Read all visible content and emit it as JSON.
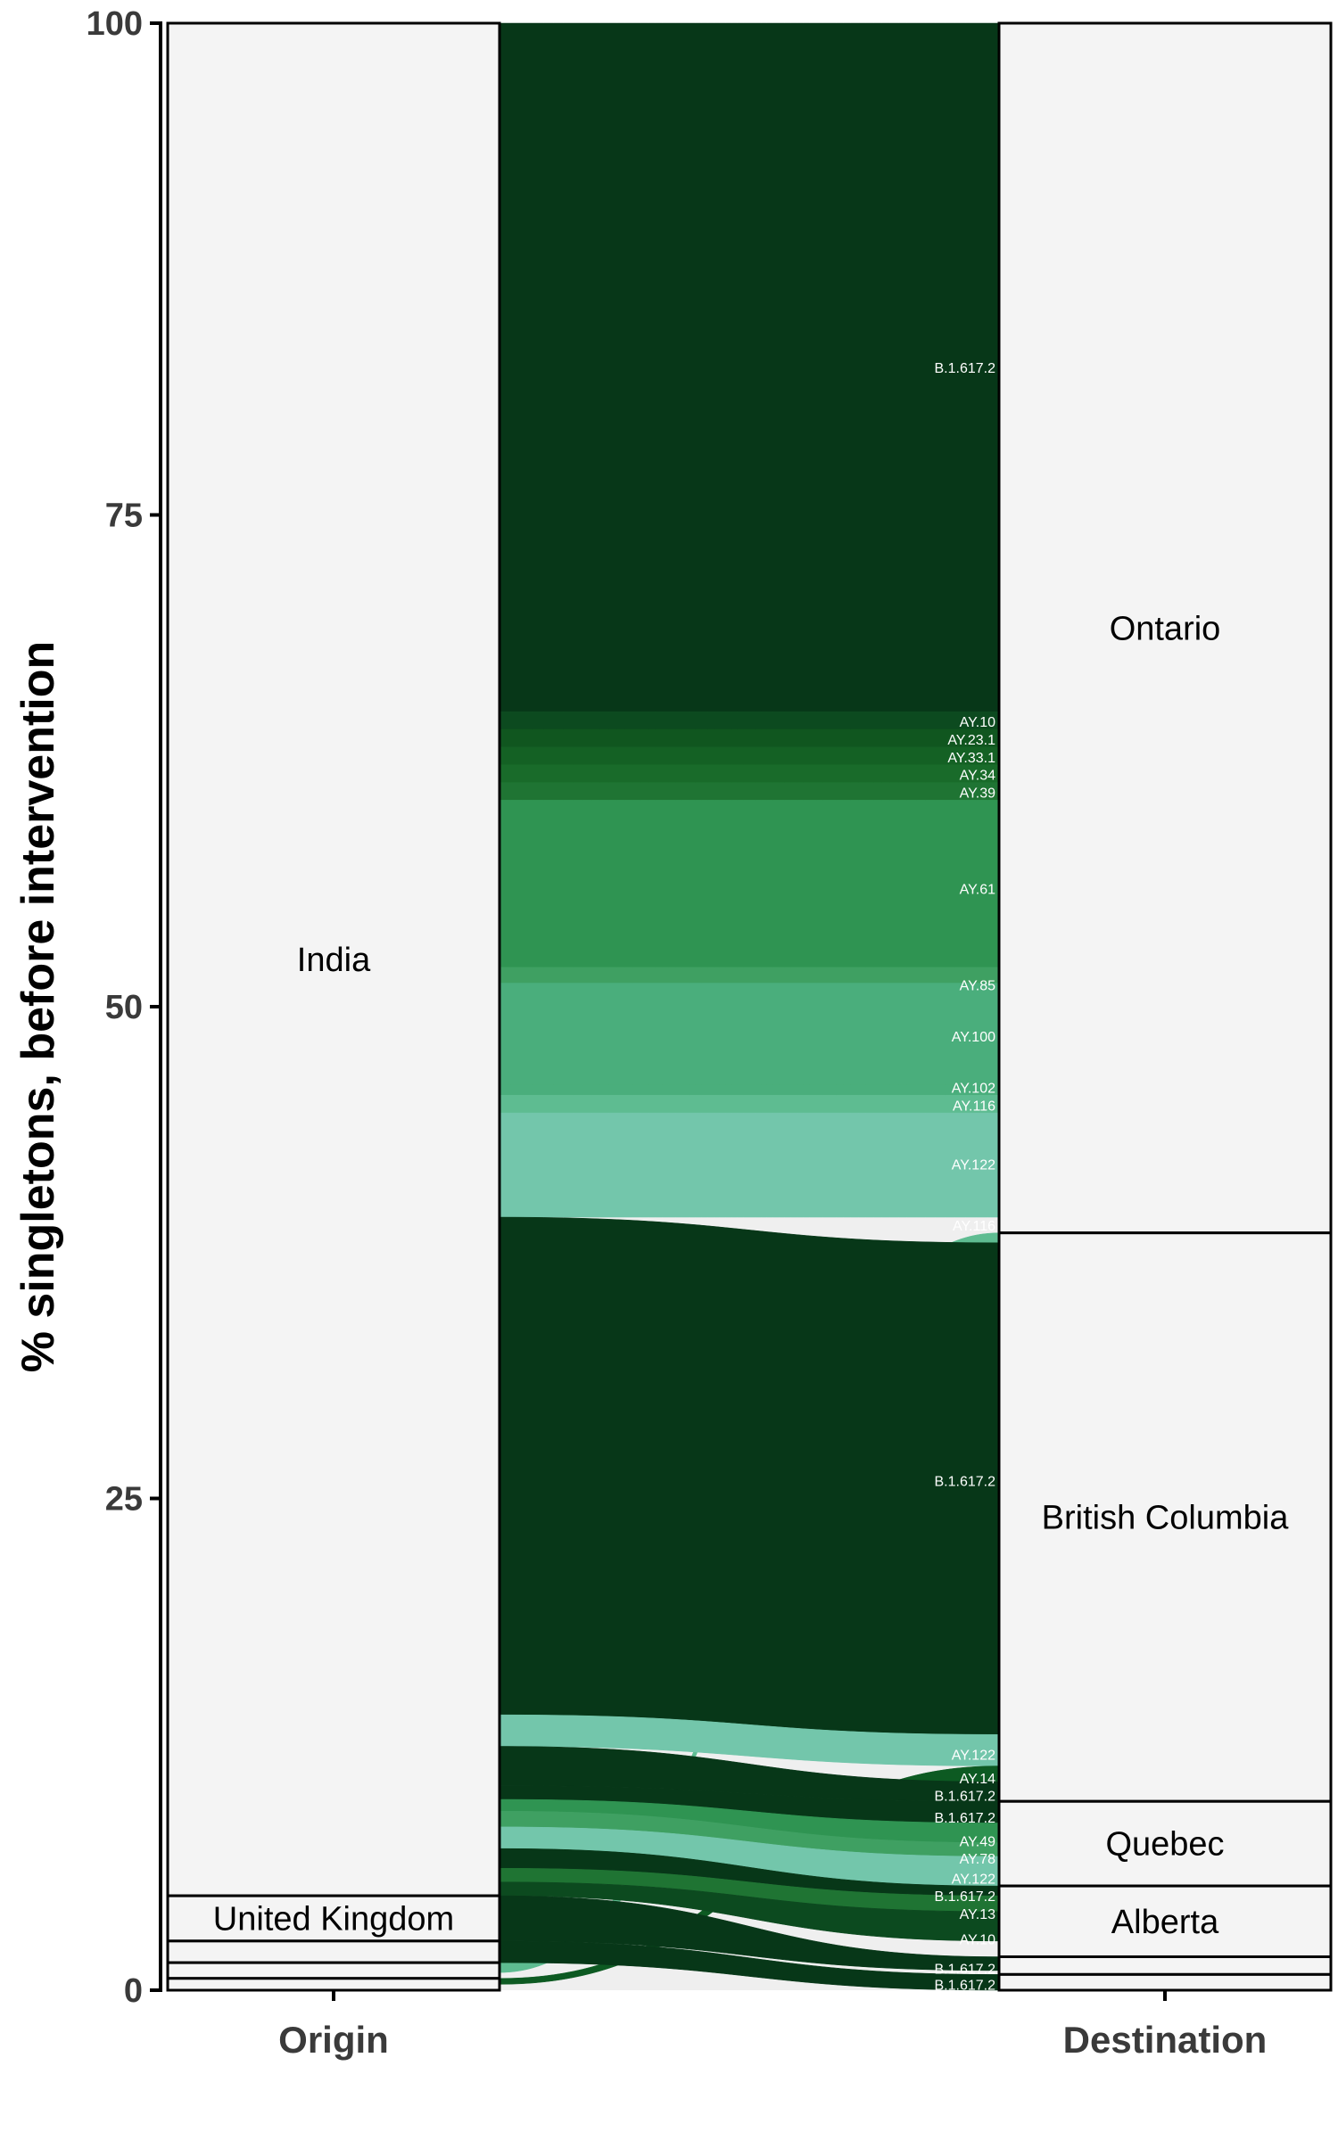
{
  "chart_data": {
    "type": "alluvial",
    "ylabel": "% singletons, before intervention",
    "ylim": [
      0,
      100
    ],
    "yticks": [
      0,
      25,
      50,
      75,
      100
    ],
    "axes": [
      "Origin",
      "Destination"
    ],
    "origin_strata": [
      {
        "name": "India",
        "label": "India",
        "from": 4.8,
        "to": 100
      },
      {
        "name": "United Kingdom",
        "label": "United Kingdom",
        "from": 2.5,
        "to": 4.8
      },
      {
        "name": "other-1",
        "label": "",
        "from": 1.4,
        "to": 2.5
      },
      {
        "name": "other-2",
        "label": "",
        "from": 0.6,
        "to": 1.4
      },
      {
        "name": "other-3",
        "label": "",
        "from": 0,
        "to": 0.6
      }
    ],
    "destination_strata": [
      {
        "name": "Ontario",
        "label": "Ontario",
        "from": 38.5,
        "to": 100
      },
      {
        "name": "British Columbia",
        "label": "British Columbia",
        "from": 9.6,
        "to": 38.5
      },
      {
        "name": "Quebec",
        "label": "Quebec",
        "from": 5.3,
        "to": 9.6
      },
      {
        "name": "Alberta",
        "label": "Alberta",
        "from": 1.7,
        "to": 5.3
      },
      {
        "name": "other-4",
        "label": "",
        "from": 0.8,
        "to": 1.7
      },
      {
        "name": "other-5",
        "label": "",
        "from": 0,
        "to": 0.8
      }
    ],
    "flows": [
      {
        "lineage": "B.1.617.2",
        "color": "#073718",
        "o": [
          65.0,
          100
        ],
        "d": [
          65.0,
          100
        ],
        "label_y": 82.5
      },
      {
        "lineage": "AY.10",
        "color": "#0c4a1f",
        "o": [
          64.1,
          65.0
        ],
        "d": [
          64.1,
          65.0
        ],
        "label_y": 64.5
      },
      {
        "lineage": "AY.23.1",
        "color": "#10561f",
        "o": [
          63.2,
          64.1
        ],
        "d": [
          63.2,
          64.1
        ],
        "label_y": 63.6
      },
      {
        "lineage": "AY.33.1",
        "color": "#146124",
        "o": [
          62.3,
          63.2
        ],
        "d": [
          62.3,
          63.2
        ],
        "label_y": 62.7
      },
      {
        "lineage": "AY.34",
        "color": "#196b2a",
        "o": [
          61.4,
          62.3
        ],
        "d": [
          61.4,
          62.3
        ],
        "label_y": 61.8
      },
      {
        "lineage": "AY.39",
        "color": "#1f7433",
        "o": [
          60.5,
          61.4
        ],
        "d": [
          60.5,
          61.4
        ],
        "label_y": 60.9
      },
      {
        "lineage": "AY.61",
        "color": "#2f9452",
        "o": [
          52.0,
          60.5
        ],
        "d": [
          52.0,
          60.5
        ],
        "label_y": 56.0
      },
      {
        "lineage": "AY.85",
        "color": "#3fa062",
        "o": [
          51.2,
          52.0
        ],
        "d": [
          51.2,
          52.0
        ],
        "label_y": 51.1
      },
      {
        "lineage": "AY.100",
        "color": "#4aae7c",
        "o": [
          46.0,
          51.2
        ],
        "d": [
          46.0,
          51.2
        ],
        "label_y": 48.5
      },
      {
        "lineage": "AY.102",
        "color": "#4aae7c",
        "o": [
          45.5,
          46.0
        ],
        "d": [
          45.5,
          46.0
        ],
        "label_y": 45.9
      },
      {
        "lineage": "AY.116",
        "color": "#5ebc91",
        "o": [
          44.6,
          45.5
        ],
        "d": [
          44.6,
          45.5
        ],
        "label_y": 45.0
      },
      {
        "lineage": "AY.122",
        "color": "#73c6ab",
        "o": [
          39.3,
          44.6
        ],
        "d": [
          39.3,
          44.6
        ],
        "label_y": 42.0
      },
      {
        "lineage": "AY.116",
        "color": "#5ebc91",
        "o": [
          0.9,
          1.4
        ],
        "d": [
          38.0,
          38.5
        ],
        "label_y": 38.9
      },
      {
        "lineage": "B.1.617.2",
        "color": "#073718",
        "o": [
          14.0,
          39.3
        ],
        "d": [
          13.0,
          38.0
        ],
        "label_y": 25.9
      },
      {
        "lineage": "AY.122",
        "color": "#73c6ab",
        "o": [
          12.4,
          14.0
        ],
        "d": [
          11.4,
          13.0
        ],
        "label_y": 12.0
      },
      {
        "lineage": "AY.14",
        "color": "#0d5a22",
        "o": [
          0.3,
          0.6
        ],
        "d": [
          10.6,
          11.4
        ],
        "label_y": 10.8
      },
      {
        "lineage": "B.1.617.2",
        "color": "#073718",
        "o": [
          10.4,
          12.4
        ],
        "d": [
          9.6,
          10.6
        ],
        "label_y": 9.9
      },
      {
        "lineage": "B.1.617.2",
        "color": "#073718",
        "o": [
          9.7,
          10.4
        ],
        "d": [
          8.5,
          9.6
        ],
        "label_y": 8.8
      },
      {
        "lineage": "AY.49",
        "color": "#2f9452",
        "o": [
          9.1,
          9.7
        ],
        "d": [
          7.5,
          8.5
        ],
        "label_y": 7.6
      },
      {
        "lineage": "AY.78",
        "color": "#3fa062",
        "o": [
          8.3,
          9.1
        ],
        "d": [
          6.8,
          7.5
        ],
        "label_y": 6.7
      },
      {
        "lineage": "AY.122",
        "color": "#73c6ab",
        "o": [
          7.2,
          8.3
        ],
        "d": [
          5.3,
          6.8
        ],
        "label_y": 5.7
      },
      {
        "lineage": "B.1.617.2",
        "color": "#073718",
        "o": [
          6.2,
          7.2
        ],
        "d": [
          4.8,
          5.3
        ],
        "label_y": 4.8
      },
      {
        "lineage": "AY.13",
        "color": "#1f7433",
        "o": [
          5.5,
          6.2
        ],
        "d": [
          4.0,
          4.8
        ],
        "label_y": 3.9
      },
      {
        "lineage": "AY.10",
        "color": "#0c4a1f",
        "o": [
          4.8,
          5.5
        ],
        "d": [
          2.5,
          4.0
        ],
        "label_y": 2.6
      },
      {
        "lineage": "B.1.617.2",
        "color": "#073718",
        "o": [
          2.5,
          4.8
        ],
        "d": [
          1.0,
          1.7
        ],
        "label_y": 1.1
      },
      {
        "lineage": "B.1.617.2",
        "color": "#073718",
        "o": [
          1.4,
          2.5
        ],
        "d": [
          0,
          0.8
        ],
        "label_y": 0.3
      }
    ]
  }
}
